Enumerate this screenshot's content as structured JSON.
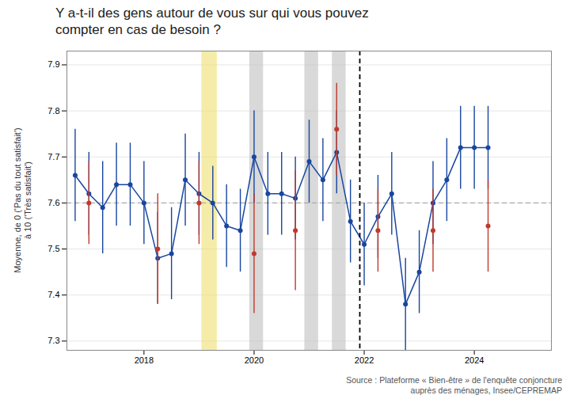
{
  "chart_data": {
    "type": "line",
    "title": "Y a-t-il des gens autour de vous sur qui vous pouvez\ncompter en cas de besoin ?",
    "ylabel": "Moyenne, de 0 ('Pas du tout satisfait')\nà 10 ('Très satisfait')",
    "source": "Source : Plateforme « Bien-être » de l'enquête conjoncture\nauprès des ménages, Insee/CEPREMAP",
    "xlim": [
      2016.6,
      2025.4
    ],
    "xticks": [
      2018,
      2020,
      2022,
      2024
    ],
    "ylim": [
      7.28,
      7.93
    ],
    "yticks": [
      7.3,
      7.4,
      7.5,
      7.6,
      7.7,
      7.8,
      7.9
    ],
    "grid": true,
    "bands": [
      {
        "x": [
          2019.05,
          2019.33
        ],
        "color": "#f0e070"
      },
      {
        "x": [
          2019.92,
          2020.17
        ],
        "color": "#c0c0c0"
      },
      {
        "x": [
          2020.92,
          2021.17
        ],
        "color": "#c0c0c0"
      },
      {
        "x": [
          2021.42,
          2021.67
        ],
        "color": "#c0c0c0"
      }
    ],
    "hline": {
      "y": 7.6,
      "color": "#aaaaaa",
      "line_style": "dashed"
    },
    "vline": {
      "x": 2021.92,
      "color": "#000000",
      "line_style": "dashed"
    },
    "series": [
      {
        "type": "line",
        "color": "#1846a0",
        "x": [
          2016.75,
          2017.0,
          2017.25,
          2017.5,
          2017.75,
          2018.0,
          2018.25,
          2018.5,
          2018.75,
          2019.0,
          2019.25,
          2019.5,
          2019.75,
          2020.0,
          2020.25,
          2020.5,
          2020.75,
          2021.0,
          2021.25,
          2021.5,
          2021.75,
          2022.0,
          2022.25,
          2022.5,
          2022.75,
          2023.0,
          2023.25,
          2023.5,
          2023.75,
          2024.0,
          2024.25
        ],
        "values": [
          7.66,
          7.62,
          7.59,
          7.64,
          7.64,
          7.6,
          7.48,
          7.49,
          7.65,
          7.62,
          7.6,
          7.55,
          7.54,
          7.7,
          7.62,
          7.62,
          7.61,
          7.69,
          7.65,
          7.71,
          7.56,
          7.51,
          7.57,
          7.62,
          7.38,
          7.45,
          7.6,
          7.65,
          7.72,
          7.72,
          7.72
        ],
        "errors": [
          0.1,
          0.09,
          0.1,
          0.09,
          0.09,
          0.09,
          0.1,
          0.1,
          0.1,
          0.09,
          0.08,
          0.09,
          0.09,
          0.1,
          0.09,
          0.09,
          0.09,
          0.09,
          0.09,
          0.09,
          0.09,
          0.09,
          0.09,
          0.09,
          0.1,
          0.09,
          0.09,
          0.09,
          0.09,
          0.09,
          0.09
        ]
      },
      {
        "type": "scatter",
        "color": "#c0392b",
        "x": [
          2017.0,
          2018.25,
          2019.0,
          2020.0,
          2020.75,
          2021.5,
          2022.25,
          2023.25,
          2024.25
        ],
        "values": [
          7.6,
          7.5,
          7.6,
          7.49,
          7.54,
          7.76,
          7.54,
          7.54,
          7.55
        ],
        "errors": [
          0.09,
          0.12,
          0.09,
          0.13,
          0.13,
          0.1,
          0.09,
          0.09,
          0.1
        ]
      }
    ]
  }
}
